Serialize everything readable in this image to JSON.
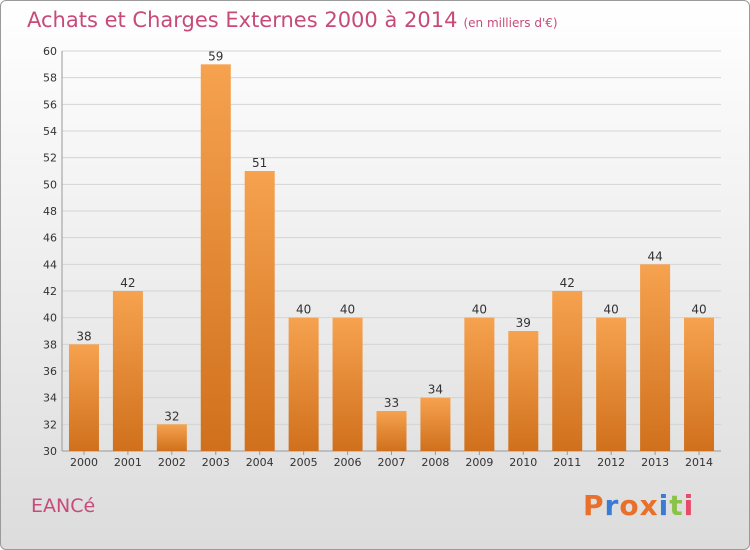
{
  "header": {
    "title": "Achats et Charges Externes 2000 à 2014",
    "subtitle": "(en milliers d'€)"
  },
  "footer": {
    "commune": "EANCé",
    "brand": "Proxiti"
  },
  "colors": {
    "title": "#c74a78",
    "bar_light": "#f6a24f",
    "bar_dark": "#d0701c",
    "grid": "#d4d4d4",
    "brand_letters": [
      "#e8702a",
      "#3a7bd5",
      "#e8702a",
      "#e8702a",
      "#3a7bd5",
      "#8bc34a",
      "#e84a6a"
    ]
  },
  "chart_data": {
    "type": "bar",
    "categories": [
      "2000",
      "2001",
      "2002",
      "2003",
      "2004",
      "2005",
      "2006",
      "2007",
      "2008",
      "2009",
      "2010",
      "2011",
      "2012",
      "2013",
      "2014"
    ],
    "values": [
      38,
      42,
      32,
      59,
      51,
      40,
      40,
      33,
      34,
      40,
      39,
      42,
      40,
      44,
      40
    ],
    "title": "Achats et Charges Externes 2000 à 2014",
    "ylim": [
      30,
      60
    ],
    "yticks": [
      30,
      32,
      34,
      36,
      38,
      40,
      42,
      44,
      46,
      48,
      50,
      52,
      54,
      56,
      58,
      60
    ],
    "grid": true,
    "data_labels": true
  }
}
